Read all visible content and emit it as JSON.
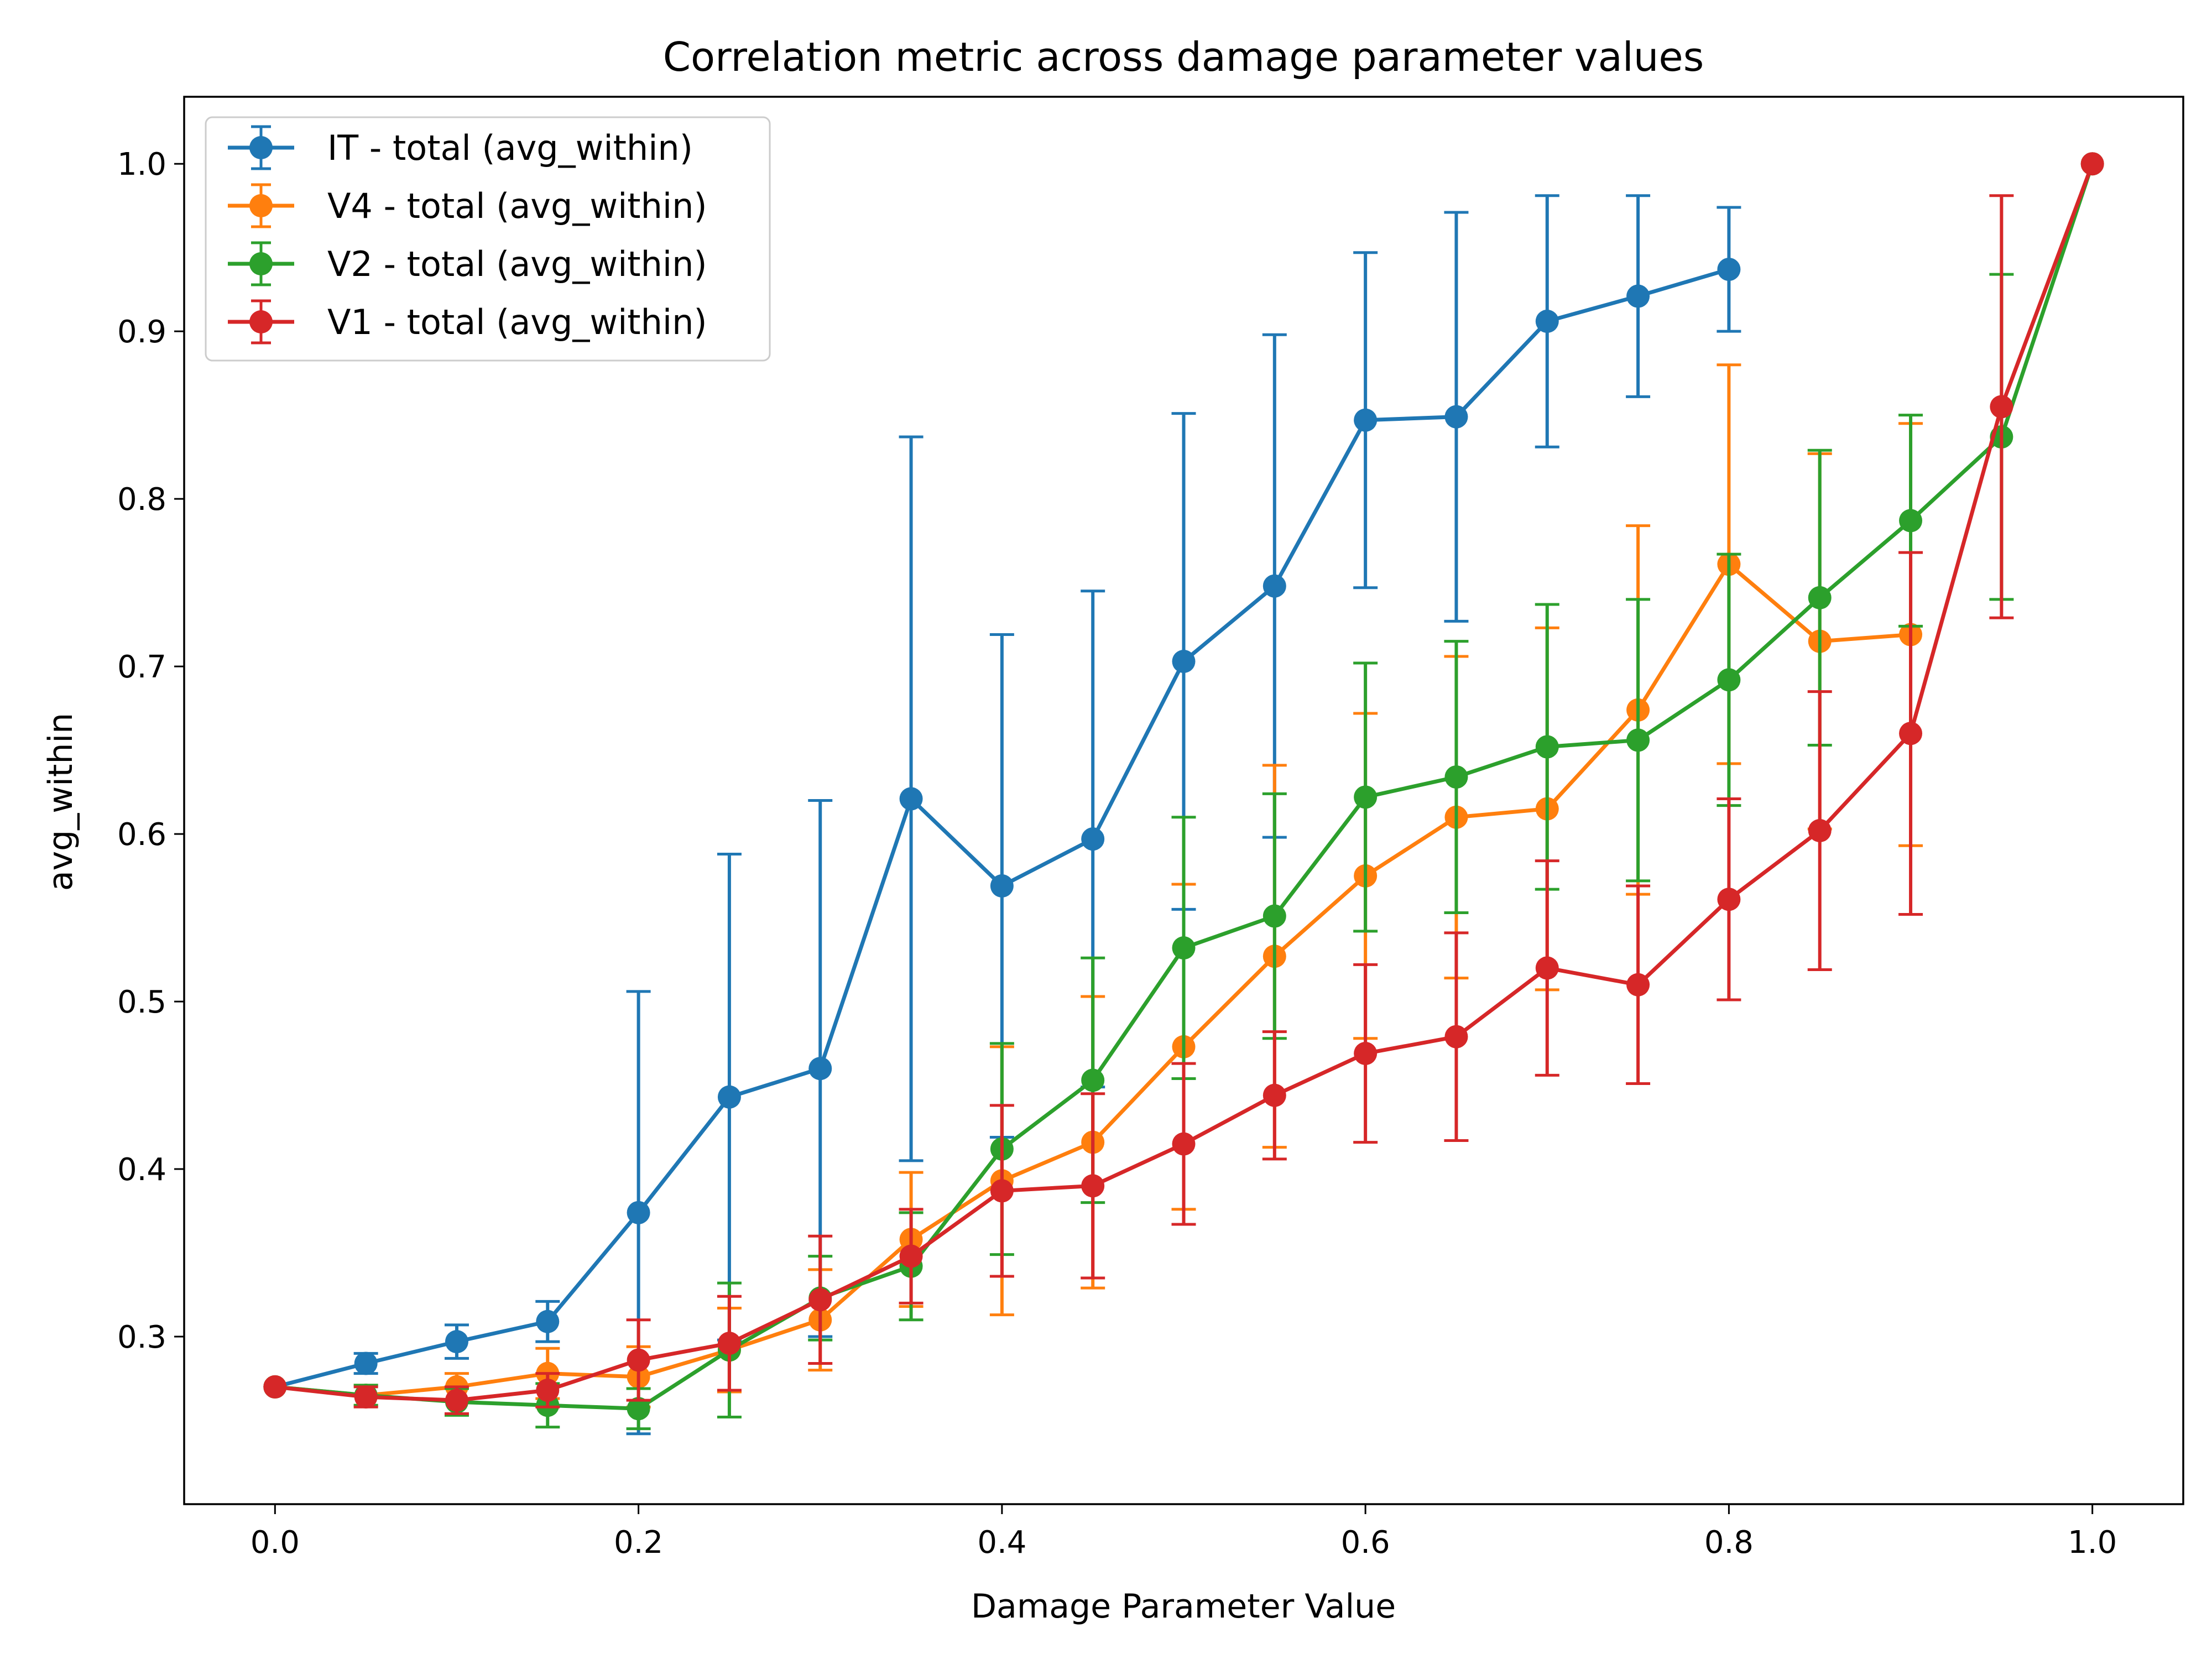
{
  "chart_data": {
    "type": "line",
    "title": "Correlation metric across damage parameter values",
    "xlabel": "Damage Parameter Value",
    "ylabel": "avg_within",
    "xlim": [
      -0.05,
      1.05
    ],
    "ylim": [
      0.2,
      1.04
    ],
    "xticks": [
      0.0,
      0.2,
      0.4,
      0.6,
      0.8,
      1.0
    ],
    "xtick_labels": [
      "0.0",
      "0.2",
      "0.4",
      "0.6",
      "0.8",
      "1.0"
    ],
    "yticks": [
      0.3,
      0.4,
      0.5,
      0.6,
      0.7,
      0.8,
      0.9,
      1.0
    ],
    "ytick_labels": [
      "0.3",
      "0.4",
      "0.5",
      "0.6",
      "0.7",
      "0.8",
      "0.9",
      "1.0"
    ],
    "grid": false,
    "legend_position": "top-left",
    "x": [
      0.0,
      0.05,
      0.1,
      0.15,
      0.2,
      0.25,
      0.3,
      0.35,
      0.4,
      0.45,
      0.5,
      0.55,
      0.6,
      0.65,
      0.7,
      0.75,
      0.8,
      0.85,
      0.9,
      0.95,
      1.0
    ],
    "series": [
      {
        "name": "IT - total (avg_within)",
        "color": "#1f77b4",
        "x": [
          0.0,
          0.05,
          0.1,
          0.15,
          0.2,
          0.25,
          0.3,
          0.35,
          0.4,
          0.45,
          0.5,
          0.55,
          0.6,
          0.65,
          0.7,
          0.75,
          0.8
        ],
        "values": [
          0.27,
          0.284,
          0.297,
          0.309,
          0.374,
          0.443,
          0.46,
          0.621,
          0.569,
          0.597,
          0.703,
          0.748,
          0.847,
          0.849,
          0.906,
          0.921,
          0.937
        ],
        "errors": [
          0.0,
          0.006,
          0.01,
          0.012,
          0.132,
          0.145,
          0.16,
          0.216,
          0.15,
          0.148,
          0.148,
          0.15,
          0.1,
          0.122,
          0.075,
          0.06,
          0.037
        ]
      },
      {
        "name": "V4 - total (avg_within)",
        "color": "#ff7f0e",
        "x": [
          0.0,
          0.05,
          0.1,
          0.15,
          0.2,
          0.25,
          0.3,
          0.35,
          0.4,
          0.45,
          0.5,
          0.55,
          0.6,
          0.65,
          0.7,
          0.75,
          0.8,
          0.85,
          0.9
        ],
        "values": [
          0.27,
          0.265,
          0.27,
          0.278,
          0.276,
          0.292,
          0.31,
          0.358,
          0.393,
          0.416,
          0.473,
          0.527,
          0.575,
          0.61,
          0.615,
          0.674,
          0.761,
          0.715,
          0.719
        ],
        "errors": [
          0.0,
          0.006,
          0.008,
          0.015,
          0.018,
          0.025,
          0.03,
          0.04,
          0.08,
          0.087,
          0.097,
          0.114,
          0.097,
          0.096,
          0.108,
          0.11,
          0.119,
          0.112,
          0.126
        ]
      },
      {
        "name": "V2 - total (avg_within)",
        "color": "#2ca02c",
        "x": [
          0.0,
          0.05,
          0.1,
          0.15,
          0.2,
          0.25,
          0.3,
          0.35,
          0.4,
          0.45,
          0.5,
          0.55,
          0.6,
          0.65,
          0.7,
          0.75,
          0.8,
          0.85,
          0.9,
          0.95,
          1.0
        ],
        "values": [
          0.27,
          0.265,
          0.261,
          0.259,
          0.257,
          0.292,
          0.323,
          0.342,
          0.412,
          0.453,
          0.532,
          0.551,
          0.622,
          0.634,
          0.652,
          0.656,
          0.692,
          0.741,
          0.787,
          0.837,
          1.0
        ],
        "errors": [
          0.0,
          0.006,
          0.008,
          0.013,
          0.012,
          0.04,
          0.025,
          0.032,
          0.063,
          0.073,
          0.078,
          0.073,
          0.08,
          0.081,
          0.085,
          0.084,
          0.075,
          0.088,
          0.063,
          0.097,
          0.0
        ]
      },
      {
        "name": "V1 - total (avg_within)",
        "color": "#d62728",
        "x": [
          0.0,
          0.05,
          0.1,
          0.15,
          0.2,
          0.25,
          0.3,
          0.35,
          0.4,
          0.45,
          0.5,
          0.55,
          0.6,
          0.65,
          0.7,
          0.75,
          0.8,
          0.85,
          0.9,
          0.95,
          1.0
        ],
        "values": [
          0.27,
          0.264,
          0.262,
          0.268,
          0.286,
          0.296,
          0.322,
          0.348,
          0.387,
          0.39,
          0.415,
          0.444,
          0.469,
          0.479,
          0.52,
          0.51,
          0.561,
          0.602,
          0.66,
          0.855,
          1.0
        ],
        "errors": [
          0.0,
          0.006,
          0.008,
          0.01,
          0.024,
          0.028,
          0.038,
          0.028,
          0.051,
          0.055,
          0.048,
          0.038,
          0.053,
          0.062,
          0.064,
          0.059,
          0.06,
          0.083,
          0.108,
          0.126,
          0.0
        ]
      }
    ]
  }
}
